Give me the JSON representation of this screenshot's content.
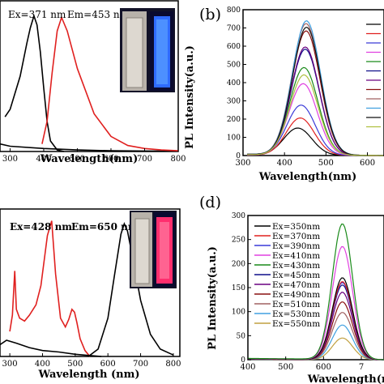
{
  "panels": {
    "a": {
      "label": "",
      "xlabel": "Wavelength(nm)",
      "ylabel": "",
      "annotations": [
        "Ex=371 nm",
        "Em=453 nm"
      ]
    },
    "b": {
      "label": "(b)",
      "xlabel": "Wavelength(nm)",
      "ylabel": "PL Intensity(a.u.)"
    },
    "c": {
      "label": "",
      "xlabel": "Wavelength (nm)",
      "ylabel": "",
      "annotations": [
        "Ex=428 nm",
        "Em=650 nm"
      ]
    },
    "d": {
      "label": "(d)",
      "xlabel": "Wavelength(nm)",
      "ylabel": "PL Intensity(a.u.)"
    }
  },
  "colors": {
    "black": "#000000",
    "red": "#e0201f",
    "photo_dark": "#121228",
    "blue_glow": "#2f6bff",
    "pink_glow": "#ff2e6e",
    "vial_bg": "#b8b2aa"
  },
  "chart_data": [
    {
      "id": "a",
      "type": "line",
      "xlim": [
        270,
        800
      ],
      "ylim": [
        0,
        1
      ],
      "x_ticks": [
        "300",
        "400",
        "500",
        "600",
        "700",
        "800"
      ],
      "series": [
        {
          "name": "",
          "color": "#000000",
          "x": [
            285,
            300,
            330,
            350,
            360,
            371,
            380,
            390,
            400,
            410,
            420,
            440,
            460
          ],
          "y": [
            0.23,
            0.28,
            0.5,
            0.72,
            0.82,
            0.9,
            0.84,
            0.66,
            0.42,
            0.2,
            0.07,
            0.01,
            0.0
          ]
        },
        {
          "name": "",
          "color": "#000000",
          "x": [
            270,
            300,
            400,
            500,
            600,
            700,
            800
          ],
          "y": [
            0.05,
            0.035,
            0.02,
            0.01,
            0.005,
            0.003,
            0.002
          ]
        },
        {
          "name": "",
          "color": "#e0201f",
          "x": [
            395,
            410,
            425,
            440,
            453,
            470,
            500,
            550,
            600,
            650,
            700,
            750,
            800
          ],
          "y": [
            0.05,
            0.2,
            0.52,
            0.8,
            0.89,
            0.8,
            0.55,
            0.25,
            0.1,
            0.04,
            0.02,
            0.01,
            0.005
          ]
        }
      ]
    },
    {
      "id": "b",
      "type": "line",
      "xlim": [
        300,
        640
      ],
      "ylim": [
        0,
        800
      ],
      "x_ticks": [
        "300",
        "400",
        "500",
        "600"
      ],
      "y_ticks": [
        "0",
        "100",
        "200",
        "300",
        "400",
        "500",
        "600",
        "700",
        "800"
      ],
      "peaks": [
        {
          "color": "#000000",
          "peak": 150,
          "x0": 432
        },
        {
          "color": "#e0201f",
          "peak": 205,
          "x0": 438
        },
        {
          "color": "#3a3ad8",
          "peak": 275,
          "x0": 440
        },
        {
          "color": "#e040e0",
          "peak": 392,
          "x0": 445
        },
        {
          "color": "#1a8a1a",
          "peak": 480,
          "x0": 447
        },
        {
          "color": "#0f0f8a",
          "peak": 580,
          "x0": 450
        },
        {
          "color": "#6a0080",
          "peak": 592,
          "x0": 450
        },
        {
          "color": "#8a1010",
          "peak": 680,
          "x0": 452
        },
        {
          "color": "#a06060",
          "peak": 720,
          "x0": 452
        },
        {
          "color": "#40a0e0",
          "peak": 735,
          "x0": 453
        },
        {
          "color": "#101010",
          "peak": 700,
          "x0": 453
        },
        {
          "color": "#b0c040",
          "peak": 440,
          "x0": 447
        }
      ]
    },
    {
      "id": "c",
      "type": "line",
      "xlim": [
        270,
        820
      ],
      "ylim": [
        0,
        1
      ],
      "x_ticks": [
        "300",
        "400",
        "500",
        "600",
        "700",
        "800"
      ],
      "series": [
        {
          "name": "",
          "color": "#e0201f",
          "x": [
            300,
            308,
            315,
            320,
            330,
            345,
            360,
            380,
            395,
            405,
            415,
            428,
            440,
            455,
            470,
            480,
            490,
            498,
            505,
            515,
            530,
            545
          ],
          "y": [
            0.17,
            0.28,
            0.58,
            0.32,
            0.26,
            0.24,
            0.28,
            0.35,
            0.48,
            0.65,
            0.82,
            0.92,
            0.56,
            0.26,
            0.2,
            0.25,
            0.32,
            0.3,
            0.23,
            0.12,
            0.04,
            0.0
          ]
        },
        {
          "name": "",
          "color": "#000000",
          "x": [
            270,
            290,
            320,
            360,
            400,
            450,
            500,
            550,
            580
          ],
          "y": [
            0.08,
            0.11,
            0.09,
            0.06,
            0.04,
            0.03,
            0.015,
            0.005,
            0.0
          ]
        },
        {
          "name": "",
          "color": "#000000",
          "x": [
            540,
            570,
            600,
            620,
            640,
            650,
            660,
            680,
            700,
            730,
            760,
            800
          ],
          "y": [
            0.0,
            0.05,
            0.26,
            0.55,
            0.83,
            0.9,
            0.85,
            0.62,
            0.38,
            0.15,
            0.05,
            0.01
          ]
        }
      ]
    },
    {
      "id": "d",
      "type": "line",
      "xlim": [
        400,
        760
      ],
      "ylim": [
        0,
        300
      ],
      "x_ticks": [
        "400",
        "500",
        "600",
        "7"
      ],
      "y_ticks": [
        "0",
        "50",
        "100",
        "150",
        "200",
        "250",
        "300"
      ],
      "legend": [
        "Ex=350nm",
        "Ex=370nm",
        "Ex=390nm",
        "Ex=410nm",
        "Ex=430nm",
        "Ex=450nm",
        "Ex=470nm",
        "Ex=490nm",
        "Ex=510nm",
        "Ex=530nm",
        "Ex=550nm"
      ],
      "legend_colors": [
        "#000000",
        "#e0201f",
        "#3a3ad8",
        "#e040e0",
        "#1a8a1a",
        "#0f0f8a",
        "#6a0080",
        "#8a1010",
        "#a06060",
        "#40a0e0",
        "#c0a040"
      ],
      "peaks": [
        {
          "color": "#c0a040",
          "peak": 45
        },
        {
          "color": "#40a0e0",
          "peak": 72
        },
        {
          "color": "#a06060",
          "peak": 98
        },
        {
          "color": "#8a1010",
          "peak": 120
        },
        {
          "color": "#6a0080",
          "peak": 140
        },
        {
          "color": "#0f0f8a",
          "peak": 155
        },
        {
          "color": "#3a3ad8",
          "peak": 160
        },
        {
          "color": "#e0201f",
          "peak": 162
        },
        {
          "color": "#000000",
          "peak": 170
        },
        {
          "color": "#e040e0",
          "peak": 235
        },
        {
          "color": "#1a8a1a",
          "peak": 282
        }
      ]
    }
  ]
}
